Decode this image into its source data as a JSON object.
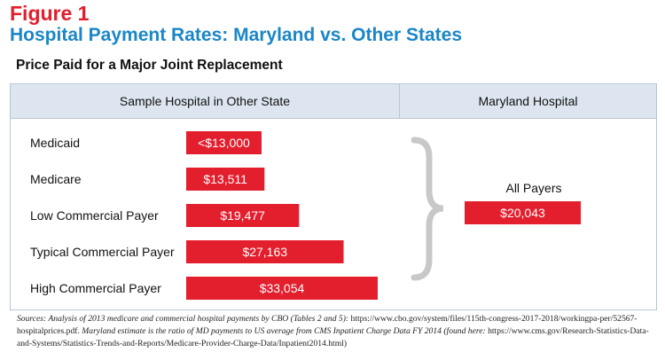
{
  "figure_label": "Figure 1",
  "figure_title": "Hospital Payment Rates: Maryland vs. Other States",
  "colors": {
    "bar": "#e31e2d",
    "title_red": "#e31e2d",
    "title_blue": "#1a86c8",
    "header_bg": "#dde6f0",
    "brace": "#c8c8c8"
  },
  "chart_data": {
    "type": "bar",
    "title": "Price Paid for a Major Joint Replacement",
    "panels": [
      {
        "header": "Sample Hospital in Other State",
        "categories": [
          "Medicaid",
          "Medicare",
          "Low Commercial Payer",
          "Typical Commercial Payer",
          "High Commercial Payer"
        ],
        "values": [
          13000,
          13511,
          19477,
          27163,
          33054
        ],
        "value_labels": [
          "<$13,000",
          "$13,511",
          "$19,477",
          "$27,163",
          "$33,054"
        ]
      },
      {
        "header": "Maryland Hospital",
        "categories": [
          "All Payers"
        ],
        "values": [
          20043
        ],
        "value_labels": [
          "$20,043"
        ]
      }
    ],
    "xlim": [
      0,
      33054
    ]
  },
  "sources": {
    "part1": "Sources: Analysis of 2013 medicare and commercial hospital payments by CBO (Tables 2 and 5): ",
    "part2": "https://www.cbo.gov/system/files/115th-congress-2017-2018/workingpa-per/52567-hospitalprices.pdf. ",
    "part3": "Maryland estimate is the ratio of MD payments to US average from CMS Inpatient Charge Data FY 2014 (found here: ",
    "part4": "https://www.cms.gov/Research-Statistics-Data-and-Systems/Statistics-Trends-and-Reports/Medicare-Provider-Charge-Data/Inpatient2014.html)"
  }
}
